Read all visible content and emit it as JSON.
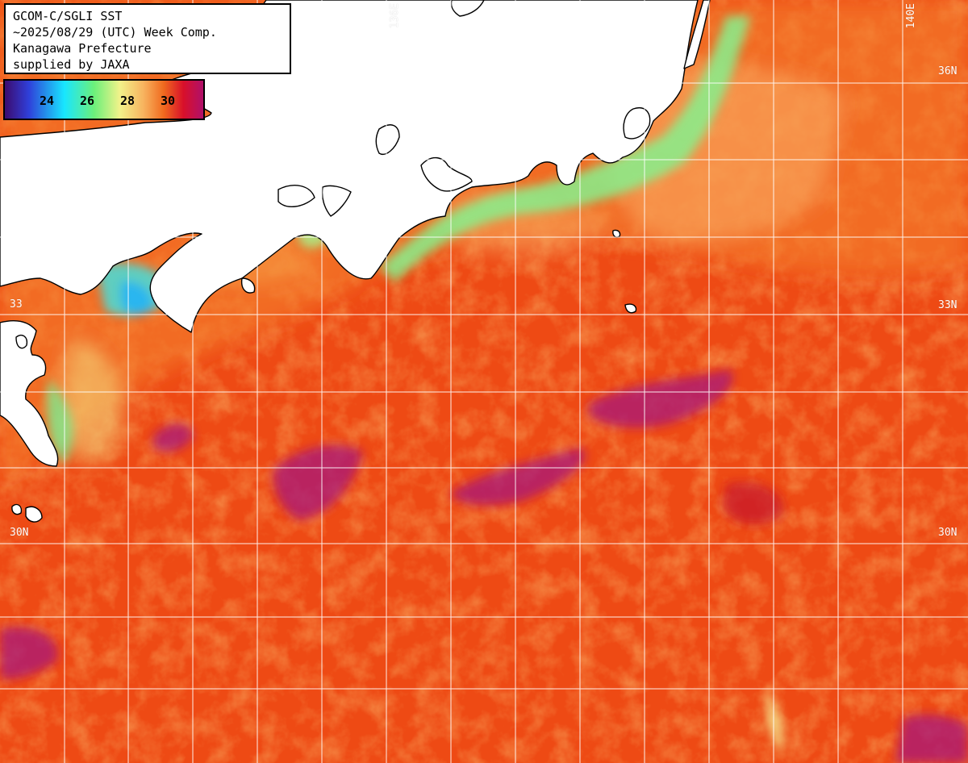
{
  "title_box": {
    "lines": [
      "GCOM-C/SGLI SST",
      "~2025/08/29 (UTC) Week Comp.",
      "Kanagawa Prefecture",
      "supplied by JAXA"
    ]
  },
  "colorbar": {
    "ticks": [
      "24",
      "26",
      "28",
      "30"
    ],
    "tick_values": [
      24,
      26,
      28,
      30
    ],
    "range_celsius": [
      22,
      32
    ],
    "colors": [
      "#3c0b6e",
      "#2f3fd9",
      "#18e6ff",
      "#6cf07a",
      "#f2f28a",
      "#f7b25e",
      "#f06a1e",
      "#d8102a",
      "#b0106a"
    ]
  },
  "grid_labels": {
    "lon_136": "136E",
    "lon_140": "140E",
    "lat_36_right": "36N",
    "lat_33_left": "33",
    "lat_33_right": "33N",
    "lat_30_left": "30N",
    "lat_30_right": "30N"
  },
  "map": {
    "graticule_color": "#ffffff",
    "land_color": "#ffffff",
    "coastline_color": "#000000",
    "ocean_base_color": "#ee4a14"
  }
}
